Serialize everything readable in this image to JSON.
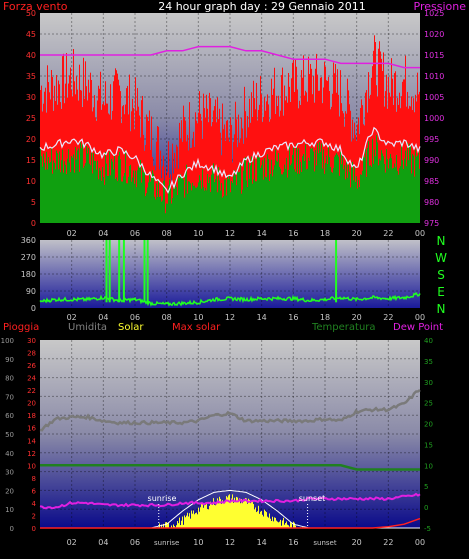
{
  "title": "24 hour graph day : 29 Gennaio 2011",
  "colors": {
    "wind": "#ff1010",
    "gust_line": "#e8e8ff",
    "temp_band": "#10a010",
    "pressure": "#e020e0",
    "direction": "#20ff20",
    "rain": "#ff2020",
    "humidity": "#7a7a7a",
    "solar": "#ffff30",
    "maxsolar": "#ffffff",
    "temperature": "#208020",
    "dewpoint": "#e020e0"
  },
  "chart_data": [
    {
      "type": "line",
      "name": "wind-pressure",
      "left_label": "Forza vento",
      "right_label": "Pressione",
      "yticks_left": [
        "0",
        "5",
        "10",
        "15",
        "20",
        "25",
        "30",
        "35",
        "40",
        "45",
        "50"
      ],
      "ylim_left": [
        0,
        50
      ],
      "yticks_right": [
        "975",
        "980",
        "985",
        "990",
        "995",
        "1000",
        "1005",
        "1010",
        "1015",
        "1020",
        "1025"
      ],
      "ylim_right": [
        975,
        1025
      ],
      "xticks": [
        "02",
        "04",
        "06",
        "08",
        "10",
        "12",
        "14",
        "16",
        "18",
        "20",
        "22",
        "00"
      ],
      "grid": true,
      "x": [
        0,
        1,
        2,
        3,
        4,
        5,
        6,
        7,
        8,
        9,
        10,
        11,
        12,
        13,
        14,
        15,
        16,
        17,
        18,
        19,
        20,
        21,
        22,
        23,
        24
      ],
      "series": [
        {
          "name": "Forza vento",
          "values": [
            29,
            30,
            32,
            30,
            26,
            28,
            25,
            18,
            12,
            19,
            23,
            21,
            17,
            24,
            27,
            29,
            30,
            31,
            31,
            28,
            20,
            36,
            30,
            31,
            28
          ]
        },
        {
          "name": "Pressione",
          "values": [
            1015,
            1015,
            1015,
            1015,
            1015,
            1015,
            1015,
            1015,
            1016,
            1016,
            1017,
            1017,
            1017,
            1016,
            1016,
            1015,
            1014,
            1014,
            1014,
            1013,
            1013,
            1013,
            1013,
            1012,
            1012
          ]
        }
      ]
    },
    {
      "type": "scatter",
      "name": "wind-direction",
      "yticks": [
        "0",
        "90",
        "180",
        "270",
        "360"
      ],
      "ylim": [
        0,
        360
      ],
      "compass": [
        "N",
        "W",
        "S",
        "E",
        "N"
      ],
      "xticks": [
        "02",
        "04",
        "06",
        "08",
        "10",
        "12",
        "14",
        "16",
        "18",
        "20",
        "22",
        "00"
      ],
      "x": [
        0,
        1,
        2,
        3,
        4,
        5,
        6,
        7,
        8,
        9,
        10,
        11,
        12,
        13,
        14,
        15,
        16,
        17,
        18,
        19,
        20,
        21,
        22,
        23,
        24
      ],
      "series": [
        {
          "name": "direction",
          "values": [
            35,
            45,
            45,
            45,
            55,
            40,
            45,
            25,
            20,
            25,
            30,
            45,
            50,
            45,
            50,
            50,
            50,
            40,
            45,
            55,
            45,
            55,
            50,
            55,
            75
          ]
        }
      ]
    },
    {
      "type": "line",
      "name": "rain-humidity-solar-temp",
      "legend": [
        "Pioggia",
        "Umidita",
        "Solar",
        "Max solar",
        "Temperatura",
        "Dew Point"
      ],
      "yticks_left": [
        "0",
        "10",
        "20",
        "30",
        "40",
        "50",
        "60",
        "70",
        "80",
        "90",
        "100"
      ],
      "ylim_left": [
        0,
        100
      ],
      "yticks_rain": [
        "0",
        "2",
        "4",
        "6",
        "8",
        "10",
        "12",
        "14",
        "16",
        "18",
        "20",
        "22",
        "24",
        "26",
        "28",
        "30"
      ],
      "yticks_right": [
        "-5",
        "0",
        "5",
        "10",
        "15",
        "20",
        "25",
        "30",
        "35",
        "40"
      ],
      "ylim_right": [
        -5,
        40
      ],
      "xticks": [
        "02",
        "04",
        "06",
        "sunrise",
        "10",
        "12",
        "14",
        "16",
        "sunset",
        "20",
        "22",
        "00"
      ],
      "annotations": [
        "sunrise",
        "sunset"
      ],
      "x": [
        0,
        1,
        2,
        3,
        4,
        5,
        6,
        7,
        8,
        9,
        10,
        11,
        12,
        13,
        14,
        15,
        16,
        17,
        18,
        19,
        20,
        21,
        22,
        23,
        24
      ],
      "series": [
        {
          "name": "Umidita",
          "values": [
            52,
            58,
            59,
            59,
            57,
            56,
            56,
            56,
            56,
            56,
            57,
            60,
            61,
            57,
            57,
            57,
            57,
            57,
            58,
            57,
            62,
            63,
            63,
            66,
            74
          ]
        },
        {
          "name": "Solar",
          "values": [
            0,
            0,
            0,
            0,
            0,
            0,
            0,
            0,
            1,
            4,
            10,
            14,
            16,
            14,
            9,
            4,
            1,
            0,
            0,
            0,
            0,
            0,
            0,
            0,
            0
          ]
        },
        {
          "name": "Max solar",
          "values": [
            0,
            0,
            0,
            0,
            0,
            0,
            0,
            0,
            2,
            9,
            15,
            19,
            20,
            19,
            15,
            9,
            2,
            0,
            0,
            0,
            0,
            0,
            0,
            0,
            0
          ]
        },
        {
          "name": "Temperatura",
          "values": [
            10,
            10,
            10,
            10,
            10,
            10,
            10,
            10,
            10,
            10,
            10,
            10,
            10,
            10,
            10,
            10,
            10,
            10,
            10,
            10,
            9,
            9,
            9,
            9,
            9
          ]
        },
        {
          "name": "Dew Point",
          "values": [
            0,
            0,
            1,
            1,
            0.5,
            0.5,
            0.5,
            0.5,
            0.5,
            1,
            1,
            1,
            1.5,
            1.5,
            1.5,
            1.5,
            1.5,
            2,
            2,
            2,
            2,
            2,
            2,
            2.5,
            3
          ]
        },
        {
          "name": "Pioggia",
          "values": [
            0,
            0,
            0,
            0,
            0,
            0,
            0,
            0,
            0,
            0,
            0,
            0,
            0,
            0,
            0,
            0,
            0,
            0,
            0,
            0,
            0,
            0,
            0.2,
            0.6,
            1.5
          ]
        }
      ]
    }
  ]
}
